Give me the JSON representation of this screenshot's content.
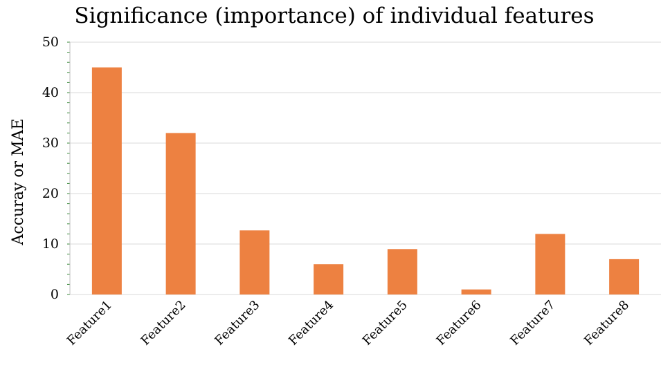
{
  "chart_data": {
    "type": "bar",
    "title": "Significance (importance) of individual features",
    "xlabel": "",
    "ylabel": "Accuray or MAE",
    "categories": [
      "Feature1",
      "Feature2",
      "Feature3",
      "Feature4",
      "Feature5",
      "Feature6",
      "Feature7",
      "Feature8"
    ],
    "values": [
      45,
      32,
      12.7,
      6,
      9,
      1,
      12,
      7
    ],
    "ylim": [
      0,
      50
    ],
    "yticks": [
      0,
      10,
      20,
      30,
      40,
      50
    ],
    "grid": true,
    "bar_color": "#ED8141",
    "grid_color": "#D9D9D9",
    "minor_tick_color": "#3A8A3A"
  }
}
